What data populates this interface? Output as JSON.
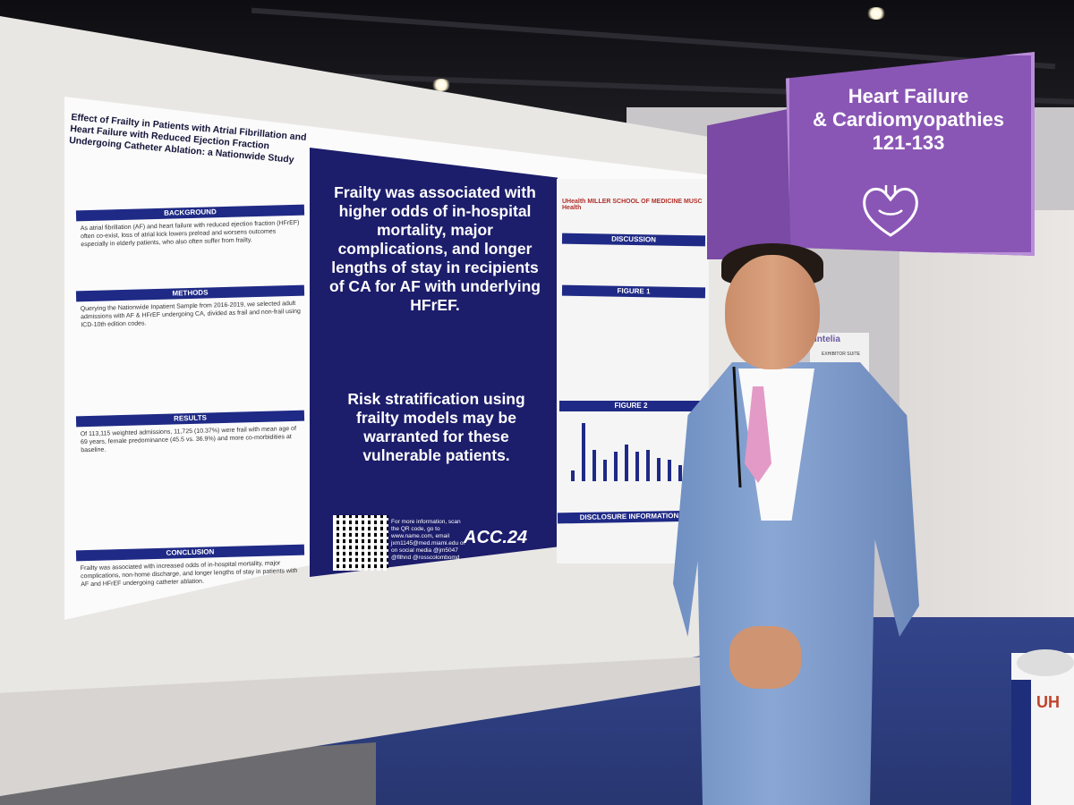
{
  "sign": {
    "lines": [
      "Heart Failure",
      "& Cardiomyopathies",
      "121-133"
    ],
    "icon": "heart-outline-icon",
    "color": "#8a56b5"
  },
  "poster": {
    "title": "Effect of Frailty in Patients with Atrial Fibrillation and Heart Failure with Reduced Ejection Fraction Undergoing Catheter Ablation: a Nationwide Study",
    "sections": [
      {
        "label": "BACKGROUND",
        "text": "As atrial fibrillation (AF) and heart failure with reduced ejection fraction (HFrEF) often co-exist, loss of atrial kick lowers preload and worsens outcomes especially in elderly patients, who also often suffer from frailty."
      },
      {
        "label": "METHODS",
        "text": "Querying the Nationwide Inpatient Sample from 2016-2019, we selected adult admissions with AF & HFrEF undergoing CA, divided as frail and non-frail using ICD-10th edition codes."
      },
      {
        "label": "RESULTS",
        "text": "Of 113,115 weighted admissions, 11,725 (10.37%) were frail with mean age of 69 years, female predominance (45.5 vs. 36.9%) and more co-morbidities at baseline."
      },
      {
        "label": "CONCLUSION",
        "text": "Frailty was associated with increased odds of in-hospital mortality, major complications, non-home discharge, and longer lengths of stay in patients with AF and HFrEF undergoing catheter ablation."
      }
    ],
    "headline": "Frailty was associated with higher odds of in-hospital mortality, major complications, and longer lengths of stay in recipients of CA for AF with underlying HFrEF.",
    "subheadline": "Risk stratification using frailty models may be warranted for these vulnerable patients.",
    "qr_note": "For more information, scan the QR code, go to www.name.com, email jxm1145@med.miami.edu or on social media @jm5047 @fllhnd @rosscolombomd",
    "conference_logo": "ACC.24",
    "logos_text": "UHealth  MILLER SCHOOL OF MEDICINE  MUSC Health",
    "right_sections": [
      "DISCUSSION",
      "FIGURE 1",
      "FIGURE 2",
      "DISCLOSURE INFORMATION"
    ],
    "figure2_values": [
      10,
      55,
      30,
      20,
      28,
      35,
      28,
      30,
      22,
      20,
      15
    ]
  },
  "exhibitor": {
    "title": "Intelia",
    "subtitle": "EXHIBITOR SUITE"
  },
  "roll": {
    "text": "UH"
  }
}
